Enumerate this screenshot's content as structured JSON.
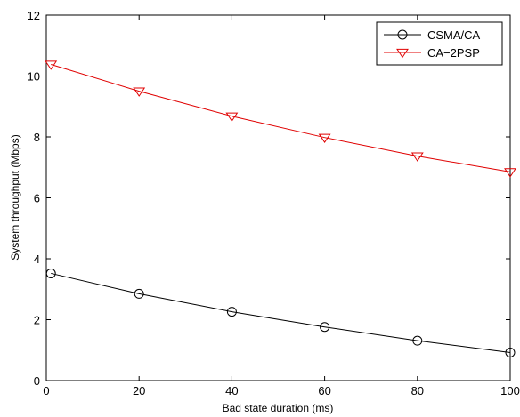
{
  "chart_data": {
    "type": "line",
    "title": "",
    "xlabel": "Bad state duration (ms)",
    "ylabel": "System throughput (Mbps)",
    "xlim": [
      0,
      100
    ],
    "ylim": [
      0,
      12
    ],
    "x_ticks": [
      0,
      20,
      40,
      60,
      80,
      100
    ],
    "y_ticks": [
      0,
      2,
      4,
      6,
      8,
      10,
      12
    ],
    "grid": false,
    "legend_position": "top-right",
    "series": [
      {
        "name": "CSMA/CA",
        "color": "#000000",
        "marker": "circle",
        "x": [
          1,
          20,
          40,
          60,
          80,
          100
        ],
        "y": [
          3.52,
          2.85,
          2.26,
          1.76,
          1.31,
          0.92
        ]
      },
      {
        "name": "CA−2PSP",
        "color": "#e00000",
        "marker": "triangle-down",
        "x": [
          1,
          20,
          40,
          60,
          80,
          100
        ],
        "y": [
          10.38,
          9.5,
          8.68,
          7.98,
          7.37,
          6.85
        ]
      }
    ]
  }
}
